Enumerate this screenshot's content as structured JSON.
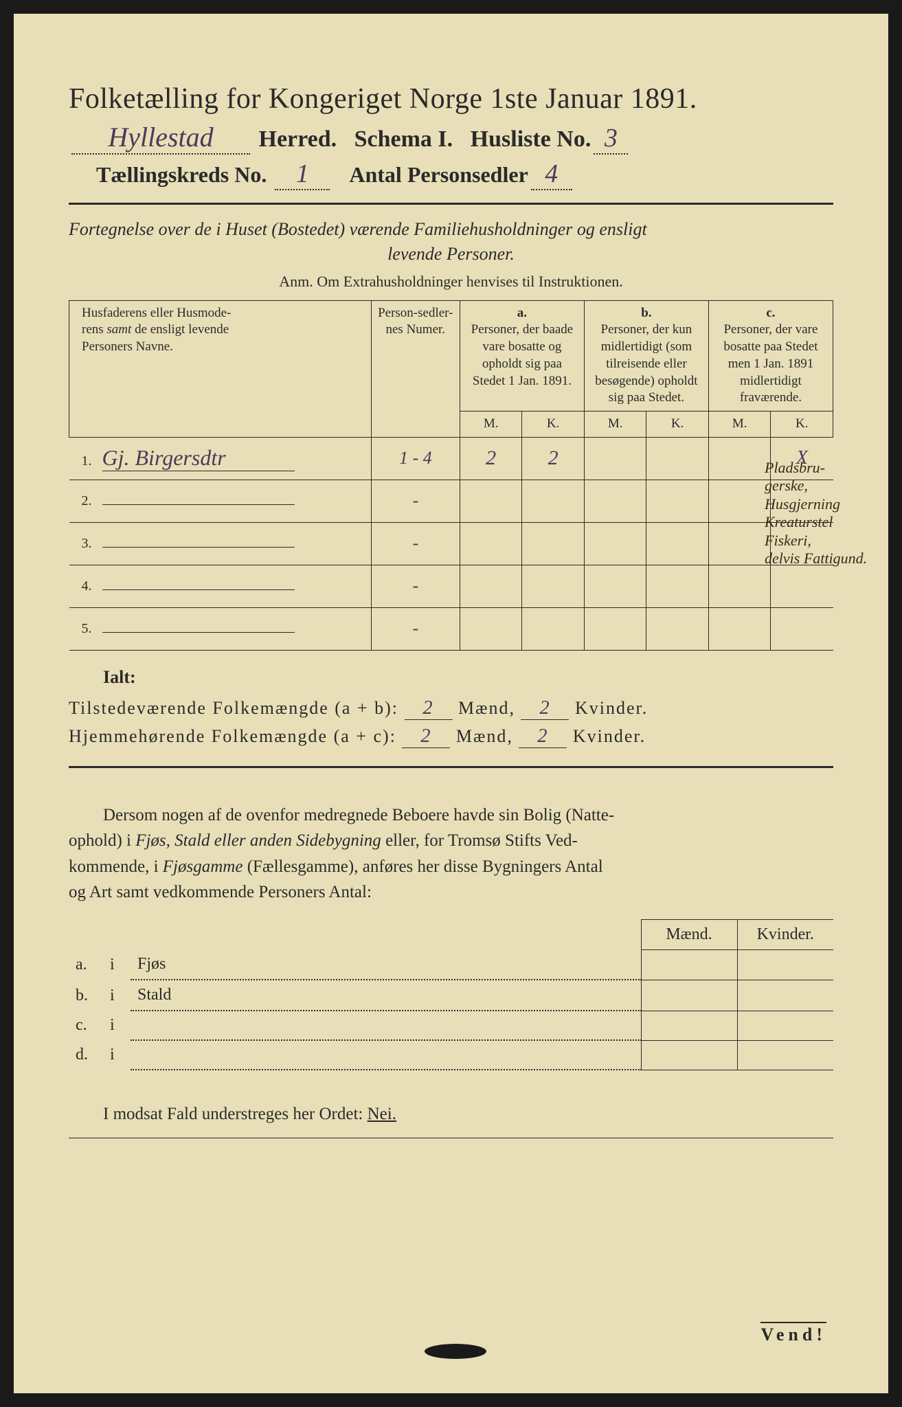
{
  "colors": {
    "paper": "#e8dfb8",
    "ink": "#2a2a2a",
    "handwriting": "#4a3a5a",
    "frame": "#1a1a1a"
  },
  "title": "Folketælling for Kongeriget Norge 1ste Januar 1891.",
  "herred_value": "Hyllestad",
  "herred_label": "Herred.",
  "schema_label": "Schema I.",
  "husliste_label": "Husliste No.",
  "husliste_value": "3",
  "kreds_label": "Tællingskreds No.",
  "kreds_value": "1",
  "antal_label": "Antal Personsedler",
  "antal_value": "4",
  "subtitle_line1": "Fortegnelse over de i Huset (Bostedet) værende Familiehusholdninger og ensligt",
  "subtitle_line2": "levende Personer.",
  "anm": "Anm. Om Extrahusholdninger henvises til Instruktionen.",
  "table": {
    "col_name": "Husfaderens eller Husmoderens samt de ensligt levende Personers Navne.",
    "col_num": "Person-sedler-nes Numer.",
    "col_a_label": "a.",
    "col_a": "Personer, der baade vare bosatte og opholdt sig paa Stedet 1 Jan. 1891.",
    "col_b_label": "b.",
    "col_b": "Personer, der kun midlertidigt (som tilreisende eller besøgende) opholdt sig paa Stedet.",
    "col_c_label": "c.",
    "col_c": "Personer, der vare bosatte paa Stedet men 1 Jan. 1891 midlertidigt fraværende.",
    "m": "M.",
    "k": "K.",
    "rows": [
      {
        "idx": "1.",
        "name": "Gj. Birgersdtr",
        "num": "1 - 4",
        "a_m": "2",
        "a_k": "2",
        "b_m": "",
        "b_k": "",
        "c_m": "",
        "c_k": "X"
      },
      {
        "idx": "2.",
        "name": "",
        "num": "-",
        "a_m": "",
        "a_k": "",
        "b_m": "",
        "b_k": "",
        "c_m": "",
        "c_k": ""
      },
      {
        "idx": "3.",
        "name": "",
        "num": "-",
        "a_m": "",
        "a_k": "",
        "b_m": "",
        "b_k": "",
        "c_m": "",
        "c_k": ""
      },
      {
        "idx": "4.",
        "name": "",
        "num": "-",
        "a_m": "",
        "a_k": "",
        "b_m": "",
        "b_k": "",
        "c_m": "",
        "c_k": ""
      },
      {
        "idx": "5.",
        "name": "",
        "num": "-",
        "a_m": "",
        "a_k": "",
        "b_m": "",
        "b_k": "",
        "c_m": "",
        "c_k": ""
      }
    ]
  },
  "margin_note": "Pladsbru-\ngerske,\nHusgjerning\nKreaturstel\nFiskeri,\ndelvis Fattigund.",
  "ialt": "Ialt:",
  "total1_label": "Tilstedeværende Folkemængde (a + b):",
  "total2_label": "Hjemmehørende Folkemængde (a + c):",
  "maend": "Mænd,",
  "kvinder": "Kvinder.",
  "total1_m": "2",
  "total1_k": "2",
  "total2_m": "2",
  "total2_k": "2",
  "para": "Dersom nogen af de ovenfor medregnede Beboere havde sin Bolig (Natteophold) i Fjøs, Stald eller anden Sidebygning eller, for Tromsø Stifts Vedkommende, i Fjøsgamme (Fællesgamme), anføres her disse Bygningers Antal og Art samt vedkommende Personers Antal:",
  "side": {
    "maend": "Mænd.",
    "kvinder": "Kvinder.",
    "rows": [
      {
        "l": "a.",
        "i": "i",
        "t": "Fjøs"
      },
      {
        "l": "b.",
        "i": "i",
        "t": "Stald"
      },
      {
        "l": "c.",
        "i": "i",
        "t": ""
      },
      {
        "l": "d.",
        "i": "i",
        "t": ""
      }
    ]
  },
  "nei_line_pre": "I modsat Fald understreges her Ordet: ",
  "nei": "Nei.",
  "vend": "Vend!"
}
